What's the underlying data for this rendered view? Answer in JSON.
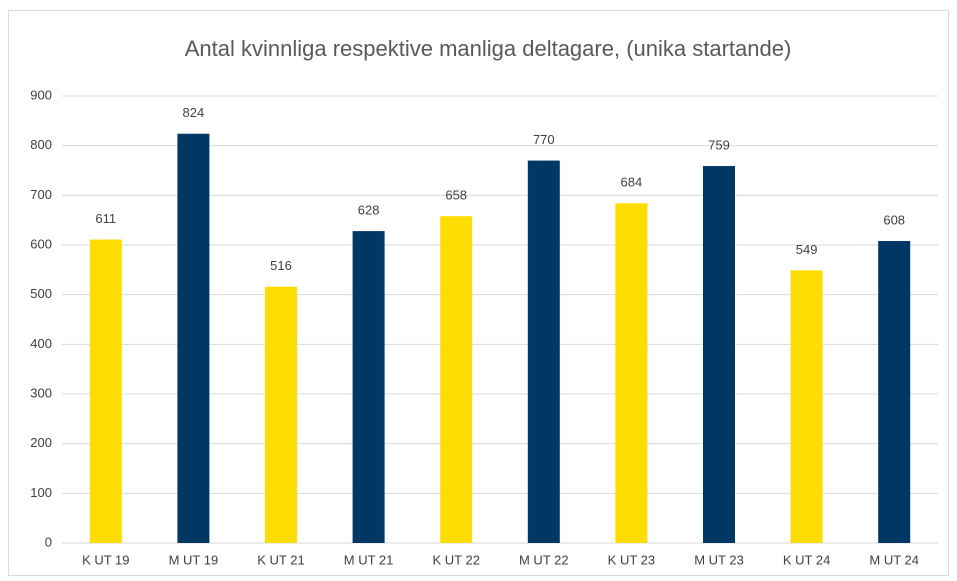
{
  "chart_data": {
    "type": "bar",
    "title": "Antal kvinnliga respektive manliga deltagare, (unika startande)",
    "categories": [
      "K UT 19",
      "M UT 19",
      "K UT 21",
      "M UT 21",
      "K UT 22",
      "M UT 22",
      "K UT 23",
      "M UT 23",
      "K UT 24",
      "M UT 24"
    ],
    "values": [
      611,
      824,
      516,
      628,
      658,
      770,
      684,
      759,
      549,
      608
    ],
    "colors": [
      "#ffdd00",
      "#003865",
      "#ffdd00",
      "#003865",
      "#ffdd00",
      "#003865",
      "#ffdd00",
      "#003865",
      "#ffdd00",
      "#003865"
    ],
    "ylim": [
      0,
      900
    ],
    "yticks": [
      0,
      100,
      200,
      300,
      400,
      500,
      600,
      700,
      800,
      900
    ],
    "grid": true
  }
}
